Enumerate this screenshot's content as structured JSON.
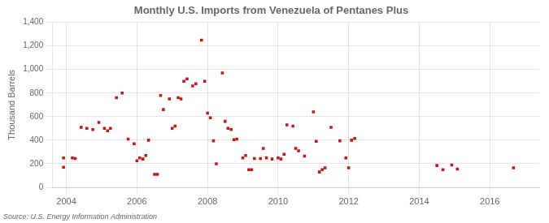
{
  "chart_data": {
    "type": "scatter",
    "title": "Monthly U.S. Imports from Venezuela of Pentanes Plus",
    "ylabel": "Thousand Barrels",
    "annotation": "Source: U.S. Energy Information Administration",
    "color": "#cc1111",
    "marker": "square",
    "grid": true,
    "xlim": [
      2003.6,
      2017.4
    ],
    "xticks": [
      2004,
      2006,
      2008,
      2010,
      2012,
      2014,
      2016
    ],
    "ylim": [
      0,
      1400
    ],
    "yticks": [
      0,
      200,
      400,
      600,
      800,
      {
        "value": 1000,
        "label": "1,000"
      },
      {
        "value": 1200,
        "label": "1,200"
      },
      {
        "value": 1400,
        "label": "1,400"
      }
    ],
    "x": [
      2003.92,
      2003.92,
      2004.17,
      2004.25,
      2004.42,
      2004.58,
      2004.75,
      2004.92,
      2005.08,
      2005.17,
      2005.25,
      2005.42,
      2005.58,
      2005.75,
      2005.92,
      2006.0,
      2006.08,
      2006.17,
      2006.25,
      2006.33,
      2006.5,
      2006.58,
      2006.67,
      2006.75,
      2006.92,
      2007.0,
      2007.08,
      2007.17,
      2007.25,
      2007.33,
      2007.42,
      2007.58,
      2007.67,
      2007.83,
      2007.92,
      2008.0,
      2008.08,
      2008.17,
      2008.25,
      2008.42,
      2008.5,
      2008.58,
      2008.67,
      2008.75,
      2008.83,
      2009.0,
      2009.08,
      2009.17,
      2009.25,
      2009.33,
      2009.5,
      2009.58,
      2009.67,
      2009.83,
      2010.0,
      2010.08,
      2010.17,
      2010.25,
      2010.42,
      2010.5,
      2010.58,
      2010.75,
      2011.0,
      2011.08,
      2011.17,
      2011.25,
      2011.33,
      2011.5,
      2011.75,
      2011.92,
      2012.0,
      2012.08,
      2012.17,
      2014.5,
      2014.67,
      2014.92,
      2015.08,
      2016.67
    ],
    "values": [
      250,
      170,
      250,
      245,
      510,
      500,
      490,
      550,
      500,
      480,
      500,
      760,
      800,
      410,
      370,
      225,
      250,
      240,
      270,
      400,
      110,
      110,
      780,
      660,
      750,
      500,
      520,
      760,
      750,
      900,
      920,
      860,
      880,
      1250,
      900,
      630,
      590,
      395,
      200,
      970,
      560,
      500,
      490,
      405,
      410,
      250,
      270,
      150,
      150,
      245,
      245,
      330,
      250,
      240,
      250,
      240,
      280,
      530,
      520,
      330,
      310,
      265,
      640,
      390,
      130,
      150,
      165,
      510,
      395,
      250,
      165,
      400,
      415,
      185,
      150,
      190,
      155,
      165
    ]
  }
}
